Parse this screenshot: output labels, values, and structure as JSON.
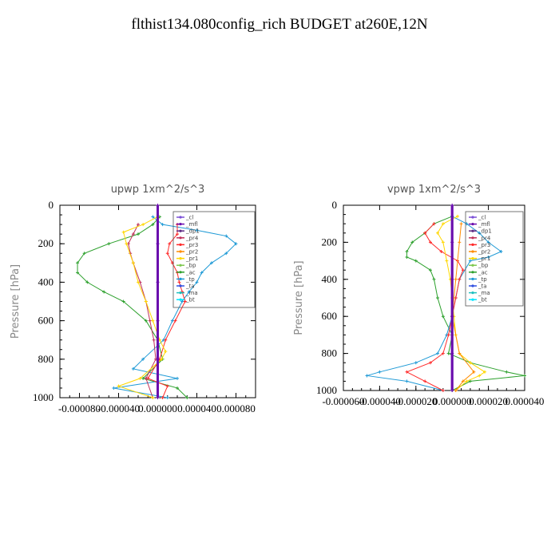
{
  "figure_title": "flthist134.080config_rich  BUDGET at260E,12N",
  "legend_entries": [
    "_cl",
    "_mfl",
    "_dp1",
    "_pr4",
    "_pr3",
    "_pr2",
    "_pr1",
    "_bp",
    "_ac",
    "_tp",
    "_ta",
    "_ma",
    "_bt"
  ],
  "colors": {
    "_cl": "#7b4fd6",
    "_mfl": "#6a0dad",
    "_dp1": "#5e2a84",
    "_pr4": "#c0305a",
    "_pr3": "#ff2a2a",
    "_pr2": "#ff8c00",
    "_pr1": "#ffd700",
    "_bp": "#7ec850",
    "_ac": "#2ca02c",
    "_tp": "#1f9ad6",
    "_ta": "#3050e0",
    "_ma": "#20c0c0",
    "_bt": "#00e5ff"
  },
  "chart_data": [
    {
      "type": "line",
      "title": "upwp   1xm^2/s^3",
      "ylabel": "Pressure [hPa]",
      "xlim": [
        -0.0001,
        0.0001
      ],
      "ylim": [
        1000,
        0
      ],
      "xticks": [
        -8e-05,
        -4e-05,
        0.0,
        4e-05,
        8e-05
      ],
      "xtick_labels": [
        "-0.000080",
        "-0.000040",
        "0.000000",
        "0.000040",
        "0.000080"
      ],
      "yticks": [
        0,
        200,
        400,
        600,
        800,
        1000
      ],
      "ytick_labels": [
        "0",
        "200",
        "400",
        "600",
        "800",
        "1000"
      ],
      "legend": "top-right inside box",
      "series": [
        {
          "name": "_ac",
          "y": [
            60,
            100,
            150,
            200,
            250,
            300,
            350,
            400,
            450,
            500,
            600,
            700,
            800,
            900,
            950,
            1000
          ],
          "x": [
            2e-06,
            -5e-06,
            -2e-05,
            -5e-05,
            -7.5e-05,
            -8.2e-05,
            -8.2e-05,
            -7.2e-05,
            -5.5e-05,
            -3.5e-05,
            -1.2e-05,
            0.0,
            5e-06,
            -1.5e-05,
            2e-05,
            3e-05
          ]
        },
        {
          "name": "_tp",
          "y": [
            60,
            100,
            130,
            160,
            200,
            250,
            300,
            350,
            400,
            450,
            500,
            600,
            700,
            800,
            850,
            900,
            950,
            1000
          ],
          "x": [
            -5e-06,
            5e-06,
            4e-05,
            7e-05,
            8e-05,
            7e-05,
            5.5e-05,
            4.5e-05,
            4e-05,
            3.2e-05,
            2.5e-05,
            1.5e-05,
            6e-06,
            -1.5e-05,
            -2.5e-05,
            2e-05,
            -4.5e-05,
            1e-05
          ]
        },
        {
          "name": "_pr3",
          "y": [
            100,
            150,
            200,
            250,
            300,
            350,
            400,
            450,
            500,
            600,
            700,
            800,
            900,
            940,
            1000
          ],
          "x": [
            2e-05,
            2e-05,
            1.2e-05,
            1e-05,
            1.5e-05,
            2e-05,
            2.2e-05,
            2.5e-05,
            2.8e-05,
            1.8e-05,
            8e-06,
            2e-06,
            -1e-05,
            1e-05,
            5e-06
          ]
        },
        {
          "name": "_pr4",
          "y": [
            100,
            150,
            200,
            250,
            300,
            400,
            500,
            600,
            700,
            800,
            900,
            1000
          ],
          "x": [
            -2e-05,
            -2.5e-05,
            -3e-05,
            -2.8e-05,
            -2.5e-05,
            -1.8e-05,
            -1.2e-05,
            -8e-06,
            -4e-06,
            -2e-06,
            -1.2e-05,
            -5e-06
          ]
        },
        {
          "name": "_pr1",
          "y": [
            60,
            100,
            140,
            200,
            300,
            400,
            500,
            600,
            700,
            760,
            800,
            900,
            940,
            1000
          ],
          "x": [
            0.0,
            -1.5e-05,
            -3.5e-05,
            -3.2e-05,
            -2.5e-05,
            -2e-05,
            -1.2e-05,
            -5e-06,
            2e-06,
            8e-06,
            4e-06,
            -1.8e-05,
            -4e-05,
            -5e-06
          ]
        },
        {
          "name": "_cl",
          "y": [
            0,
            200,
            400,
            600,
            800,
            1000
          ],
          "x": [
            0.0,
            0.0,
            0.0,
            0.0,
            0.0,
            0.0
          ]
        },
        {
          "name": "_mfl",
          "y": [
            0,
            200,
            400,
            600,
            800,
            1000
          ],
          "x": [
            0.0,
            0.0,
            0.0,
            0.0,
            0.0,
            0.0
          ]
        }
      ]
    },
    {
      "type": "line",
      "title": "vpwp   1xm^2/s^3",
      "ylabel": "Pressure [hPa]",
      "xlim": [
        -6e-05,
        4e-05
      ],
      "ylim": [
        1000,
        0
      ],
      "xticks": [
        -6e-05,
        -4e-05,
        -2e-05,
        0.0,
        2e-05,
        4e-05
      ],
      "xtick_labels": [
        "-0.000060",
        "-0.000040",
        "-0.000020",
        "0.000000",
        "0.000020",
        "0.000040"
      ],
      "yticks": [
        0,
        200,
        400,
        600,
        800,
        1000
      ],
      "ytick_labels": [
        "0",
        "200",
        "400",
        "600",
        "800",
        "1000"
      ],
      "legend": "top-right inside box",
      "series": [
        {
          "name": "_ac",
          "y": [
            60,
            100,
            150,
            200,
            250,
            280,
            300,
            350,
            400,
            500,
            600,
            700,
            800,
            850,
            900,
            920,
            950,
            1000
          ],
          "x": [
            0.0,
            -1e-05,
            -1.5e-05,
            -2.2e-05,
            -2.5e-05,
            -2.5e-05,
            -2e-05,
            -1.2e-05,
            -1e-05,
            -8e-06,
            -5e-06,
            0.0,
            -2e-06,
            1e-05,
            3e-05,
            4e-05,
            1e-05,
            0.0
          ]
        },
        {
          "name": "_tp",
          "y": [
            60,
            100,
            150,
            200,
            250,
            280,
            300,
            400,
            500,
            600,
            700,
            800,
            850,
            900,
            920,
            950,
            1000
          ],
          "x": [
            0.0,
            8e-06,
            1.5e-05,
            2e-05,
            2.7e-05,
            2e-05,
            1e-05,
            4e-06,
            2e-06,
            0.0,
            -3e-06,
            -8e-06,
            -2e-05,
            -4e-05,
            -4.7e-05,
            -2.5e-05,
            -5e-06
          ]
        },
        {
          "name": "_pr3",
          "y": [
            100,
            150,
            200,
            250,
            300,
            350,
            400,
            500,
            600,
            700,
            800,
            850,
            900,
            950,
            1000
          ],
          "x": [
            -1e-05,
            -1.5e-05,
            -1.2e-05,
            -6e-06,
            3e-06,
            6e-06,
            4e-06,
            2e-06,
            0.0,
            -2e-06,
            -5e-06,
            -1.2e-05,
            -2.5e-05,
            -1.5e-05,
            -5e-06
          ]
        },
        {
          "name": "_pr1",
          "y": [
            60,
            100,
            150,
            200,
            300,
            400,
            500,
            600,
            700,
            800,
            850,
            900,
            920,
            950,
            1000
          ],
          "x": [
            3e-06,
            -5e-06,
            -8e-06,
            -5e-06,
            -3e-06,
            -1e-06,
            0.0,
            1e-06,
            2e-06,
            4e-06,
            1e-05,
            1.8e-05,
            1.5e-05,
            8e-06,
            2e-06
          ]
        },
        {
          "name": "_pr2",
          "y": [
            100,
            200,
            400,
            600,
            800,
            900,
            950,
            1000
          ],
          "x": [
            5e-06,
            4e-06,
            2e-06,
            0.0,
            4e-06,
            1.2e-05,
            6e-06,
            2e-06
          ]
        },
        {
          "name": "_cl",
          "y": [
            0,
            200,
            400,
            600,
            800,
            1000
          ],
          "x": [
            0.0,
            0.0,
            0.0,
            0.0,
            0.0,
            0.0
          ]
        },
        {
          "name": "_mfl",
          "y": [
            0,
            200,
            400,
            600,
            800,
            1000
          ],
          "x": [
            0.0,
            0.0,
            0.0,
            0.0,
            0.0,
            0.0
          ]
        }
      ]
    }
  ]
}
